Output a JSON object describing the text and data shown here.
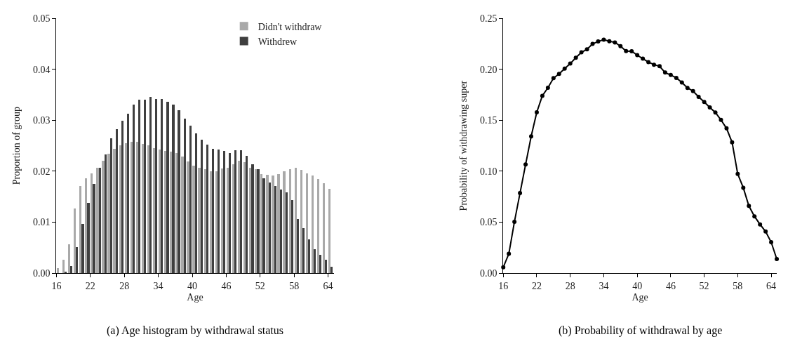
{
  "chart_data": [
    {
      "type": "histogram",
      "xlabel": "Age",
      "ylabel": "Proportion of group",
      "bins": [
        16,
        17,
        18,
        19,
        20,
        21,
        22,
        23,
        24,
        25,
        26,
        27,
        28,
        29,
        30,
        31,
        32,
        33,
        34,
        35,
        36,
        37,
        38,
        39,
        40,
        41,
        42,
        43,
        44,
        45,
        46,
        47,
        48,
        49,
        50,
        51,
        52,
        53,
        54,
        55,
        56,
        57,
        58,
        59,
        60,
        61,
        62,
        63,
        64,
        65
      ],
      "series": [
        {
          "name": "Didn't withdraw",
          "color": "#a9a9a9",
          "values": [
            0.0009,
            0.0026,
            0.0056,
            0.0126,
            0.017,
            0.0186,
            0.0196,
            0.0206,
            0.022,
            0.0234,
            0.0244,
            0.025,
            0.0254,
            0.0257,
            0.0258,
            0.0253,
            0.025,
            0.0245,
            0.0242,
            0.024,
            0.0238,
            0.0235,
            0.0229,
            0.0219,
            0.0211,
            0.0207,
            0.0203,
            0.02,
            0.02,
            0.0205,
            0.0206,
            0.0213,
            0.022,
            0.0217,
            0.0206,
            0.0203,
            0.0194,
            0.0192,
            0.0191,
            0.0194,
            0.02,
            0.0204,
            0.0206,
            0.0202,
            0.0195,
            0.0191,
            0.0185,
            0.0176,
            0.0165
          ]
        },
        {
          "name": "Withdrew",
          "color": "#3f3f3f",
          "values": [
            0,
            0.0003,
            0.0014,
            0.0051,
            0.0096,
            0.0138,
            0.0175,
            0.0207,
            0.0233,
            0.0264,
            0.0282,
            0.0299,
            0.0312,
            0.033,
            0.034,
            0.034,
            0.0345,
            0.0342,
            0.0341,
            0.0336,
            0.0331,
            0.032,
            0.0303,
            0.0289,
            0.0274,
            0.0262,
            0.0252,
            0.0244,
            0.0242,
            0.0239,
            0.0236,
            0.0241,
            0.0241,
            0.023,
            0.0213,
            0.0203,
            0.0186,
            0.0177,
            0.017,
            0.0163,
            0.0158,
            0.0143,
            0.0106,
            0.0088,
            0.0066,
            0.0046,
            0.0035,
            0.0026,
            0.0012
          ]
        }
      ],
      "xlim": [
        16,
        65
      ],
      "xticks": [
        16,
        22,
        28,
        34,
        40,
        46,
        52,
        58,
        64
      ],
      "ylim": [
        0,
        0.05
      ],
      "yticks": [
        {
          "value": 0,
          "label": "0.00"
        },
        {
          "value": 0.01,
          "label": "0.01"
        },
        {
          "value": 0.02,
          "label": "0.02"
        },
        {
          "value": 0.03,
          "label": "0.03"
        },
        {
          "value": 0.04,
          "label": "0.04"
        },
        {
          "value": 0.05,
          "label": "0.05"
        }
      ],
      "legend": "top right",
      "annotations": [
        "(a) Age histogram by withdrawal status"
      ]
    },
    {
      "type": "line",
      "xlabel": "Age",
      "ylabel": "Probability of withdrawing super",
      "marker": "circle",
      "line_style": "solid",
      "x": [
        16,
        17,
        18,
        19,
        20,
        21,
        22,
        23,
        24,
        25,
        26,
        27,
        28,
        29,
        30,
        31,
        32,
        33,
        34,
        35,
        36,
        37,
        38,
        39,
        40,
        41,
        42,
        43,
        44,
        45,
        46,
        47,
        48,
        49,
        50,
        51,
        52,
        53,
        54,
        55,
        56,
        57,
        58,
        59,
        60,
        61,
        62,
        63,
        64,
        65
      ],
      "series": [
        {
          "color": "#000000",
          "values": [
            0.0057,
            0.0189,
            0.0504,
            0.0785,
            0.1066,
            0.1342,
            0.1579,
            0.1741,
            0.182,
            0.1914,
            0.1956,
            0.2007,
            0.2057,
            0.2114,
            0.2167,
            0.2197,
            0.225,
            0.2274,
            0.2292,
            0.2276,
            0.2265,
            0.2228,
            0.218,
            0.2178,
            0.214,
            0.2105,
            0.2072,
            0.2046,
            0.2031,
            0.1969,
            0.1945,
            0.1917,
            0.1871,
            0.1818,
            0.1787,
            0.173,
            0.168,
            0.1627,
            0.1577,
            0.1504,
            0.1421,
            0.1283,
            0.0974,
            0.0838,
            0.066,
            0.0557,
            0.0478,
            0.0408,
            0.0303,
            0.0138
          ]
        }
      ],
      "xlim": [
        16,
        65
      ],
      "xticks": [
        16,
        22,
        28,
        34,
        40,
        46,
        52,
        58,
        64
      ],
      "ylim": [
        0,
        0.25
      ],
      "yticks": [
        {
          "value": 0,
          "label": "0.00"
        },
        {
          "value": 0.05,
          "label": "0.05"
        },
        {
          "value": 0.1,
          "label": "0.10"
        },
        {
          "value": 0.15,
          "label": "0.15"
        },
        {
          "value": 0.2,
          "label": "0.20"
        },
        {
          "value": 0.25,
          "label": "0.25"
        }
      ],
      "annotations": [
        "(b) Probability of withdrawal by age"
      ]
    }
  ]
}
